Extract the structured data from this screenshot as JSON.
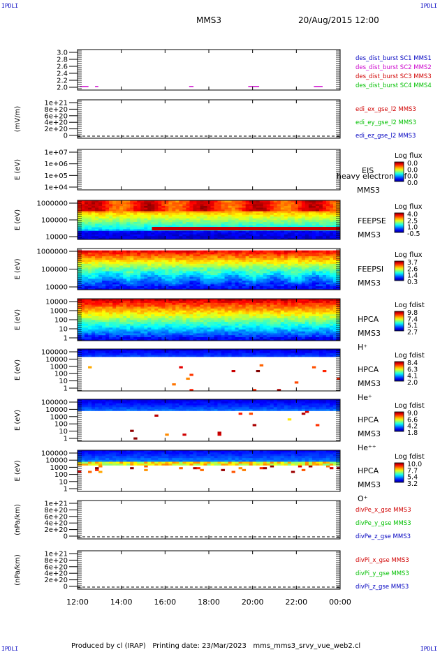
{
  "corners": {
    "top_left": "IPDLI",
    "top_right": "IPDLI",
    "bottom_left": "IPDLI",
    "bottom_right": "IPDLI"
  },
  "header": {
    "title": "MMS3",
    "date": "20/Aug/2015 12:00"
  },
  "footer": "Produced by cl (IRAP)   Printing date: 23/Mar/2023   mms_mms3_srvy_vue_web2.cl",
  "chart_data": {
    "type": "heatmap",
    "x_ticks": [
      "12:00",
      "14:00",
      "16:00",
      "18:00",
      "20:00",
      "22:00",
      "00:00"
    ],
    "panels": [
      {
        "id": "burst",
        "ylabel": "",
        "yticks": [
          "3.0",
          "2.8",
          "2.6",
          "2.4",
          "2.2",
          "2.0"
        ],
        "legend": [
          {
            "text": "des_dist_burst SC1 MMS1",
            "color": "#0000c0"
          },
          {
            "text": "des_dist_burst SC2 MMS2",
            "color": "#cc00cc"
          },
          {
            "text": "des_dist_burst SC3 MMS3",
            "color": "#d00000"
          },
          {
            "text": "des_dist_burst SC4 MMS4",
            "color": "#00c000"
          }
        ],
        "bursts_hours": [
          [
            12.1,
            12.5
          ],
          [
            12.8,
            12.95
          ],
          [
            17.1,
            17.3
          ],
          [
            19.8,
            20.3
          ],
          [
            22.8,
            23.2
          ]
        ]
      },
      {
        "id": "efield",
        "ylabel": "(mV/m)",
        "yticks": [
          "1e+21",
          "8e+20",
          "6e+20",
          "4e+20",
          "2e+20",
          "0"
        ],
        "legend": [
          {
            "text": "edi_ex_gse_l2 MMS3",
            "color": "#d00000"
          },
          {
            "text": "edi_ey_gse_l2 MMS3",
            "color": "#00c000"
          },
          {
            "text": "edi_ez_gse_l2 MMS3",
            "color": "#0000c0"
          }
        ]
      },
      {
        "id": "eis",
        "ylabel": "E (eV)",
        "yticks": [
          "1e+07",
          "1e+06",
          "1e+05",
          "1e+04"
        ],
        "right_labels": [
          "EIS",
          "heavy electron tof",
          "MMS3"
        ],
        "cbar_title": "Log flux",
        "cbar_ticks": [
          "0.0",
          "0.0",
          "0.0",
          "0.0"
        ]
      },
      {
        "id": "feepse",
        "ylabel": "E (eV)",
        "yticks": [
          "1000000",
          "100000",
          "10000"
        ],
        "right_labels": [
          "FEEPSE",
          "MMS3"
        ],
        "cbar_title": "Log flux",
        "cbar_ticks": [
          "4.0",
          "2.5",
          "1.0",
          "-0.5"
        ]
      },
      {
        "id": "feepsi",
        "ylabel": "E (eV)",
        "yticks": [
          "1000000",
          "100000",
          "10000"
        ],
        "right_labels": [
          "FEEPSI",
          "MMS3"
        ],
        "cbar_title": "Log flux",
        "cbar_ticks": [
          "3.7",
          "2.6",
          "1.4",
          "0.3"
        ]
      },
      {
        "id": "hpca_h",
        "ylabel": "E (eV)",
        "yticks": [
          "10000",
          "1000",
          "100",
          "10",
          "1"
        ],
        "right_labels": [
          "HPCA",
          "MMS3",
          "H⁺"
        ],
        "cbar_title": "Log fdist",
        "cbar_ticks": [
          "9.8",
          "7.4",
          "5.1",
          "2.7"
        ]
      },
      {
        "id": "hpca_he",
        "ylabel": "E (eV)",
        "yticks": [
          "100000",
          "10000",
          "1000",
          "100",
          "10",
          "1"
        ],
        "right_labels": [
          "HPCA",
          "MMS3",
          "He⁺"
        ],
        "cbar_title": "Log fdist",
        "cbar_ticks": [
          "8.4",
          "6.3",
          "4.1",
          "2.0"
        ]
      },
      {
        "id": "hpca_hepp",
        "ylabel": "E (eV)",
        "yticks": [
          "100000",
          "10000",
          "1000",
          "100",
          "10",
          "1"
        ],
        "right_labels": [
          "HPCA",
          "MMS3",
          "He⁺⁺"
        ],
        "cbar_title": "Log fdist",
        "cbar_ticks": [
          "9.0",
          "6.6",
          "4.2",
          "1.8"
        ]
      },
      {
        "id": "hpca_o",
        "ylabel": "E (eV)",
        "yticks": [
          "100000",
          "10000",
          "1000",
          "100",
          "10",
          "1"
        ],
        "right_labels": [
          "HPCA",
          "MMS3",
          "O⁺"
        ],
        "cbar_title": "Log fdist",
        "cbar_ticks": [
          "10.0",
          "7.7",
          "5.4",
          "3.2"
        ]
      },
      {
        "id": "divpe",
        "ylabel": "(nPa/km)",
        "yticks": [
          "1e+21",
          "8e+20",
          "6e+20",
          "4e+20",
          "2e+20",
          "0"
        ],
        "legend": [
          {
            "text": "divPe_x_gse MMS3",
            "color": "#d00000"
          },
          {
            "text": "divPe_y_gse MMS3",
            "color": "#00c000"
          },
          {
            "text": "divPe_z_gse MMS3",
            "color": "#0000c0"
          }
        ]
      },
      {
        "id": "divpi",
        "ylabel": "(nPa/km)",
        "yticks": [
          "1e+21",
          "8e+20",
          "6e+20",
          "4e+20",
          "2e+20",
          "0"
        ],
        "legend": [
          {
            "text": "divPi_x_gse MMS3",
            "color": "#d00000"
          },
          {
            "text": "divPi_y_gse MMS3",
            "color": "#00c000"
          },
          {
            "text": "divPi_z_gse MMS3",
            "color": "#0000c0"
          }
        ]
      }
    ]
  }
}
